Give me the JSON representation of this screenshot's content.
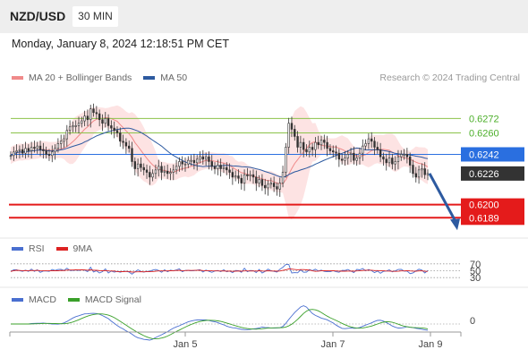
{
  "header": {
    "symbol": "NZD/USD",
    "timeframe": "30 MIN"
  },
  "datetime": "Monday, January 8, 2024 12:18:51 PM CET",
  "copyright": "Research © 2024 Trading Central",
  "legend": {
    "bollinger": {
      "label": "MA 20 + Bollinger Bands",
      "color": "#f08a8a"
    },
    "ma50": {
      "label": "MA 50",
      "color": "#2d5aa0"
    }
  },
  "rsi_legend": {
    "rsi": {
      "label": "RSI",
      "color": "#4a6fd0"
    },
    "ma9": {
      "label": "9MA",
      "color": "#dd2222"
    }
  },
  "macd_legend": {
    "macd": {
      "label": "MACD",
      "color": "#4a6fd0"
    },
    "signal": {
      "label": "MACD Signal",
      "color": "#3aa02a"
    }
  },
  "chart_data": {
    "type": "candlestick",
    "ylim": [
      0.6175,
      0.63
    ],
    "price_levels": [
      {
        "label": "0.6272",
        "value": 0.6272,
        "style": "resistance",
        "color": "#8bc34a"
      },
      {
        "label": "0.6260",
        "value": 0.626,
        "style": "resistance",
        "color": "#8bc34a"
      },
      {
        "label": "0.6242",
        "value": 0.6242,
        "style": "pivot",
        "color": "#2a6fe0"
      },
      {
        "label": "0.6226",
        "value": 0.6226,
        "style": "last-price",
        "color": "#333333"
      },
      {
        "label": "0.6200",
        "value": 0.62,
        "style": "support",
        "color": "#e41b1b"
      },
      {
        "label": "0.6189",
        "value": 0.6189,
        "style": "support",
        "color": "#e41b1b"
      }
    ],
    "x_labels": [
      "Jan 5",
      "Jan 7",
      "Jan 9"
    ],
    "price_path": [
      0.6241,
      0.6244,
      0.6245,
      0.6246,
      0.6243,
      0.6247,
      0.6245,
      0.6248,
      0.6247,
      0.6249,
      0.6246,
      0.6245,
      0.6242,
      0.6241,
      0.6244,
      0.6247,
      0.6251,
      0.6253,
      0.6255,
      0.6262,
      0.6265,
      0.6266,
      0.6266,
      0.6268,
      0.627,
      0.6274,
      0.6271,
      0.628,
      0.6277,
      0.6276,
      0.6271,
      0.6268,
      0.6272,
      0.6266,
      0.6264,
      0.6262,
      0.626,
      0.6253,
      0.6252,
      0.6249,
      0.6247,
      0.6236,
      0.623,
      0.6234,
      0.6231,
      0.6229,
      0.6227,
      0.6223,
      0.6226,
      0.6229,
      0.6232,
      0.6227,
      0.6228,
      0.6226,
      0.6227,
      0.6229,
      0.6232,
      0.6236,
      0.6234,
      0.6234,
      0.6237,
      0.6237,
      0.6235,
      0.6238,
      0.624,
      0.6238,
      0.624,
      0.6236,
      0.6232,
      0.623,
      0.6233,
      0.623,
      0.6231,
      0.6229,
      0.6227,
      0.6223,
      0.6224,
      0.6222,
      0.6218,
      0.6225,
      0.6224,
      0.6225,
      0.6223,
      0.6218,
      0.6221,
      0.6216,
      0.6214,
      0.6217,
      0.6218,
      0.6215,
      0.6213,
      0.6218,
      0.6227,
      0.6248,
      0.6268,
      0.6263,
      0.6257,
      0.6248,
      0.6252,
      0.6246,
      0.6244,
      0.6248,
      0.6246,
      0.6252,
      0.625,
      0.6254,
      0.6252,
      0.6247,
      0.6245,
      0.6244,
      0.6243,
      0.6238,
      0.6237,
      0.6239,
      0.6242,
      0.6243,
      0.6237,
      0.6239,
      0.6243,
      0.6249,
      0.6251,
      0.6255,
      0.6253,
      0.6248,
      0.6246,
      0.624,
      0.6238,
      0.6235,
      0.6239,
      0.6234,
      0.6236,
      0.624,
      0.6242,
      0.6242,
      0.624,
      0.6233,
      0.6226,
      0.6223,
      0.6229,
      0.623,
      0.6225,
      0.6226
    ],
    "forecast": {
      "from": 0.6226,
      "to": 0.6195
    },
    "rsi": {
      "levels": [
        70,
        50,
        30
      ]
    },
    "macd": {
      "levels": [
        0
      ]
    }
  }
}
